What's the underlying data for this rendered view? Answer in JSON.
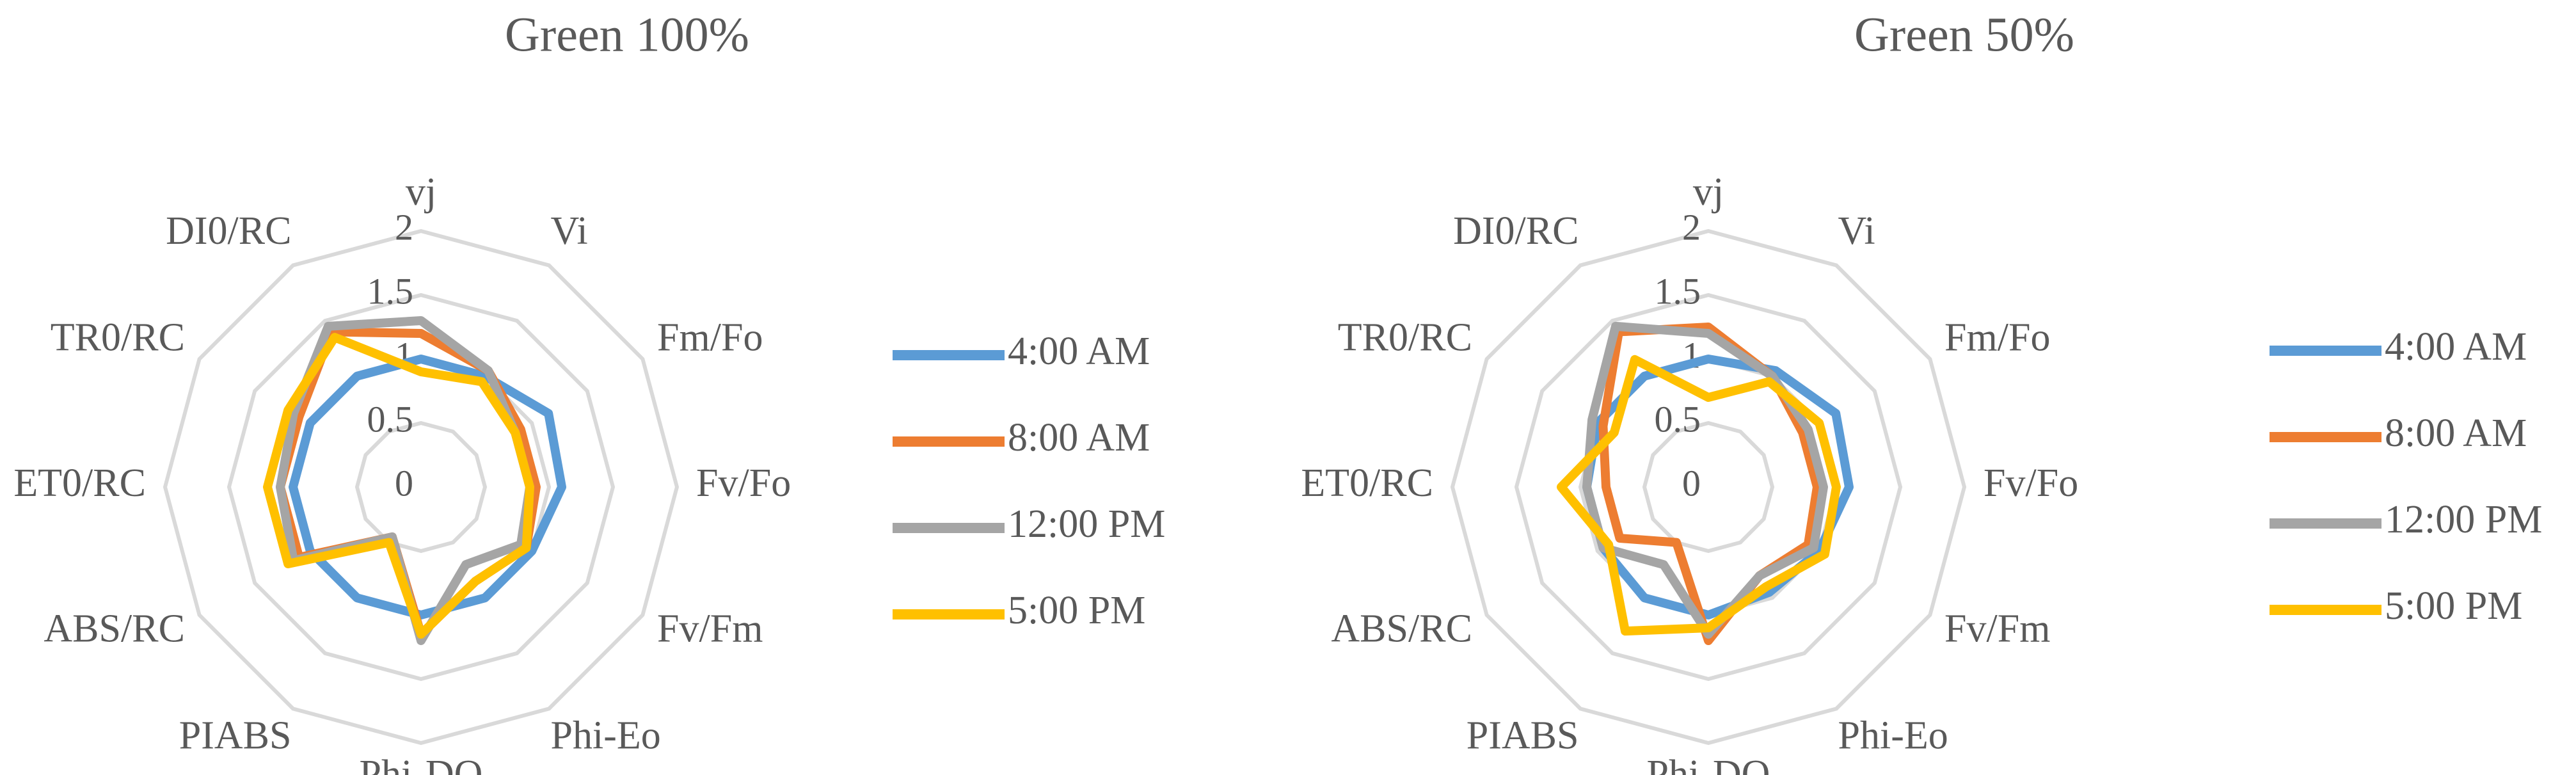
{
  "chart_data": [
    {
      "type": "radar",
      "title": "Green 100%",
      "categories": [
        "vj",
        "Vi",
        "Fm/Fo",
        "Fv/Fo",
        "Fv/Fm",
        "Phi-Eo",
        "Phi-DO",
        "PIABS",
        "ABS/RC",
        "ET0/RC",
        "TR0/RC",
        "DI0/RC"
      ],
      "ylim": [
        0,
        2
      ],
      "yticks": [
        0,
        0.5,
        1,
        1.5,
        2
      ],
      "grid": true,
      "series": [
        {
          "name": "4:00 AM",
          "color": "#5b9bd5",
          "values": [
            1.0,
            1.0,
            1.15,
            1.1,
            1.0,
            1.0,
            1.0,
            1.0,
            1.0,
            1.0,
            1.0,
            1.0
          ]
        },
        {
          "name": "8:00 AM",
          "color": "#ed7d31",
          "values": [
            1.2,
            1.05,
            0.9,
            0.9,
            0.95,
            0.85,
            1.15,
            0.45,
            1.1,
            1.1,
            1.1,
            1.4
          ]
        },
        {
          "name": "12:00 PM",
          "color": "#a5a5a5",
          "values": [
            1.3,
            1.05,
            0.85,
            0.85,
            0.9,
            0.7,
            1.2,
            0.45,
            1.15,
            1.1,
            1.15,
            1.45
          ]
        },
        {
          "name": "5:00 PM",
          "color": "#ffc000",
          "values": [
            0.9,
            0.95,
            0.85,
            0.85,
            0.95,
            0.85,
            1.15,
            0.5,
            1.2,
            1.2,
            1.2,
            1.35
          ]
        }
      ]
    },
    {
      "type": "radar",
      "title": "Green 50%",
      "categories": [
        "vj",
        "Vi",
        "Fm/Fo",
        "Fv/Fo",
        "Fv/Fm",
        "Phi-Eo",
        "Phi-DO",
        "PIABS",
        "ABS/RC",
        "ET0/RC",
        "TR0/RC",
        "DI0/RC"
      ],
      "ylim": [
        0,
        2
      ],
      "yticks": [
        0,
        0.5,
        1,
        1.5,
        2
      ],
      "grid": true,
      "series": [
        {
          "name": "4:00 AM",
          "color": "#5b9bd5",
          "values": [
            1.0,
            1.05,
            1.15,
            1.1,
            1.0,
            0.95,
            1.0,
            1.0,
            0.95,
            0.95,
            1.0,
            1.0
          ]
        },
        {
          "name": "8:00 AM",
          "color": "#ed7d31",
          "values": [
            1.25,
            1.0,
            0.85,
            0.85,
            0.9,
            0.8,
            1.2,
            0.5,
            0.8,
            0.8,
            0.95,
            1.4
          ]
        },
        {
          "name": "12:00 PM",
          "color": "#a5a5a5",
          "values": [
            1.2,
            1.0,
            0.9,
            0.9,
            0.95,
            0.8,
            1.15,
            0.7,
            0.95,
            0.95,
            1.05,
            1.45
          ]
        },
        {
          "name": "5:00 PM",
          "color": "#ffc000",
          "values": [
            0.7,
            0.95,
            1.0,
            1.0,
            1.05,
            0.9,
            1.1,
            1.3,
            0.9,
            1.15,
            0.85,
            1.15
          ]
        }
      ]
    }
  ]
}
